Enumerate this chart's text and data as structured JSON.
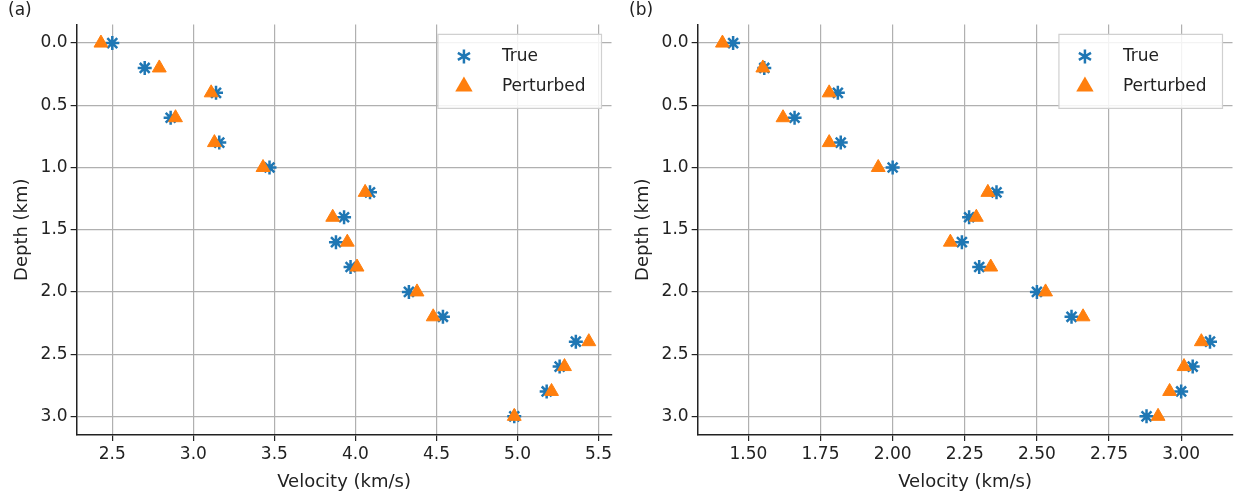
{
  "chart_data": [
    {
      "type": "scatter",
      "title": "(a)",
      "xlabel": "Velocity (km/s)",
      "ylabel": "Depth (km)",
      "xlim": [
        2.28,
        5.58
      ],
      "ylim": [
        3.15,
        -0.15
      ],
      "xticks": [
        2.5,
        {
          "value": 3,
          "label": "3.0"
        },
        3.5,
        {
          "value": 4,
          "label": "4.0"
        },
        4.5,
        {
          "value": 5,
          "label": "5.0"
        },
        5.5
      ],
      "yticks": [
        {
          "value": 0,
          "label": "0.0"
        },
        0.5,
        {
          "value": 1,
          "label": "1.0"
        },
        1.5,
        {
          "value": 2,
          "label": "2.0"
        },
        2.5,
        {
          "value": 3,
          "label": "3.0"
        }
      ],
      "grid": true,
      "legend": "top right",
      "series": [
        {
          "name": "True",
          "color": "#1f77b4",
          "marker": "cross",
          "x": [
            2.5,
            2.7,
            3.14,
            2.86,
            3.16,
            3.47,
            4.09,
            3.93,
            3.88,
            3.97,
            4.33,
            4.54,
            5.36,
            5.26,
            5.18,
            4.98
          ],
          "values": [
            0,
            0.2,
            0.4,
            0.6,
            0.8,
            1.0,
            1.2,
            1.4,
            1.6,
            1.8,
            2.0,
            2.2,
            2.4,
            2.6,
            2.8,
            3.0
          ]
        },
        {
          "name": "Perturbed",
          "color": "#ff7f0e",
          "marker": "triangle",
          "x": [
            2.43,
            2.79,
            3.11,
            2.89,
            3.13,
            3.43,
            4.06,
            3.86,
            3.95,
            4.01,
            4.38,
            4.48,
            5.44,
            5.29,
            5.21,
            4.98
          ],
          "values": [
            0,
            0.2,
            0.4,
            0.6,
            0.8,
            1.0,
            1.2,
            1.4,
            1.6,
            1.8,
            2.0,
            2.2,
            2.4,
            2.6,
            2.8,
            3.0
          ]
        }
      ]
    },
    {
      "type": "scatter",
      "title": "(b)",
      "xlabel": "Velocity (km/s)",
      "ylabel": "Depth (km)",
      "xlim": [
        1.324,
        3.178
      ],
      "ylim": [
        3.15,
        -0.15
      ],
      "xticks": [
        {
          "value": 1.5,
          "label": "1.50"
        },
        1.75,
        {
          "value": 2,
          "label": "2.00"
        },
        2.25,
        {
          "value": 2.5,
          "label": "2.50"
        },
        2.75,
        {
          "value": 3,
          "label": "3.00"
        }
      ],
      "yticks": [
        {
          "value": 0,
          "label": "0.0"
        },
        0.5,
        {
          "value": 1,
          "label": "1.0"
        },
        1.5,
        {
          "value": 2,
          "label": "2.0"
        },
        2.5,
        {
          "value": 3,
          "label": "3.0"
        }
      ],
      "grid": true,
      "legend": "top right",
      "series": [
        {
          "name": "True",
          "color": "#1f77b4",
          "marker": "cross",
          "x": [
            1.447,
            1.555,
            1.81,
            1.66,
            1.82,
            2.0,
            2.36,
            2.265,
            2.24,
            2.3,
            2.5,
            2.62,
            3.1,
            3.04,
            3.0,
            2.88
          ],
          "values": [
            0,
            0.2,
            0.4,
            0.6,
            0.8,
            1.0,
            1.2,
            1.4,
            1.6,
            1.8,
            2.0,
            2.2,
            2.4,
            2.6,
            2.8,
            3.0
          ]
        },
        {
          "name": "Perturbed",
          "color": "#ff7f0e",
          "marker": "triangle",
          "x": [
            1.41,
            1.55,
            1.78,
            1.62,
            1.78,
            1.95,
            2.33,
            2.29,
            2.2,
            2.34,
            2.53,
            2.66,
            3.07,
            3.01,
            2.96,
            2.92
          ],
          "values": [
            0,
            0.2,
            0.4,
            0.6,
            0.8,
            1.0,
            1.2,
            1.4,
            1.6,
            1.8,
            2.0,
            2.2,
            2.4,
            2.6,
            2.8,
            3.0
          ]
        }
      ]
    }
  ]
}
